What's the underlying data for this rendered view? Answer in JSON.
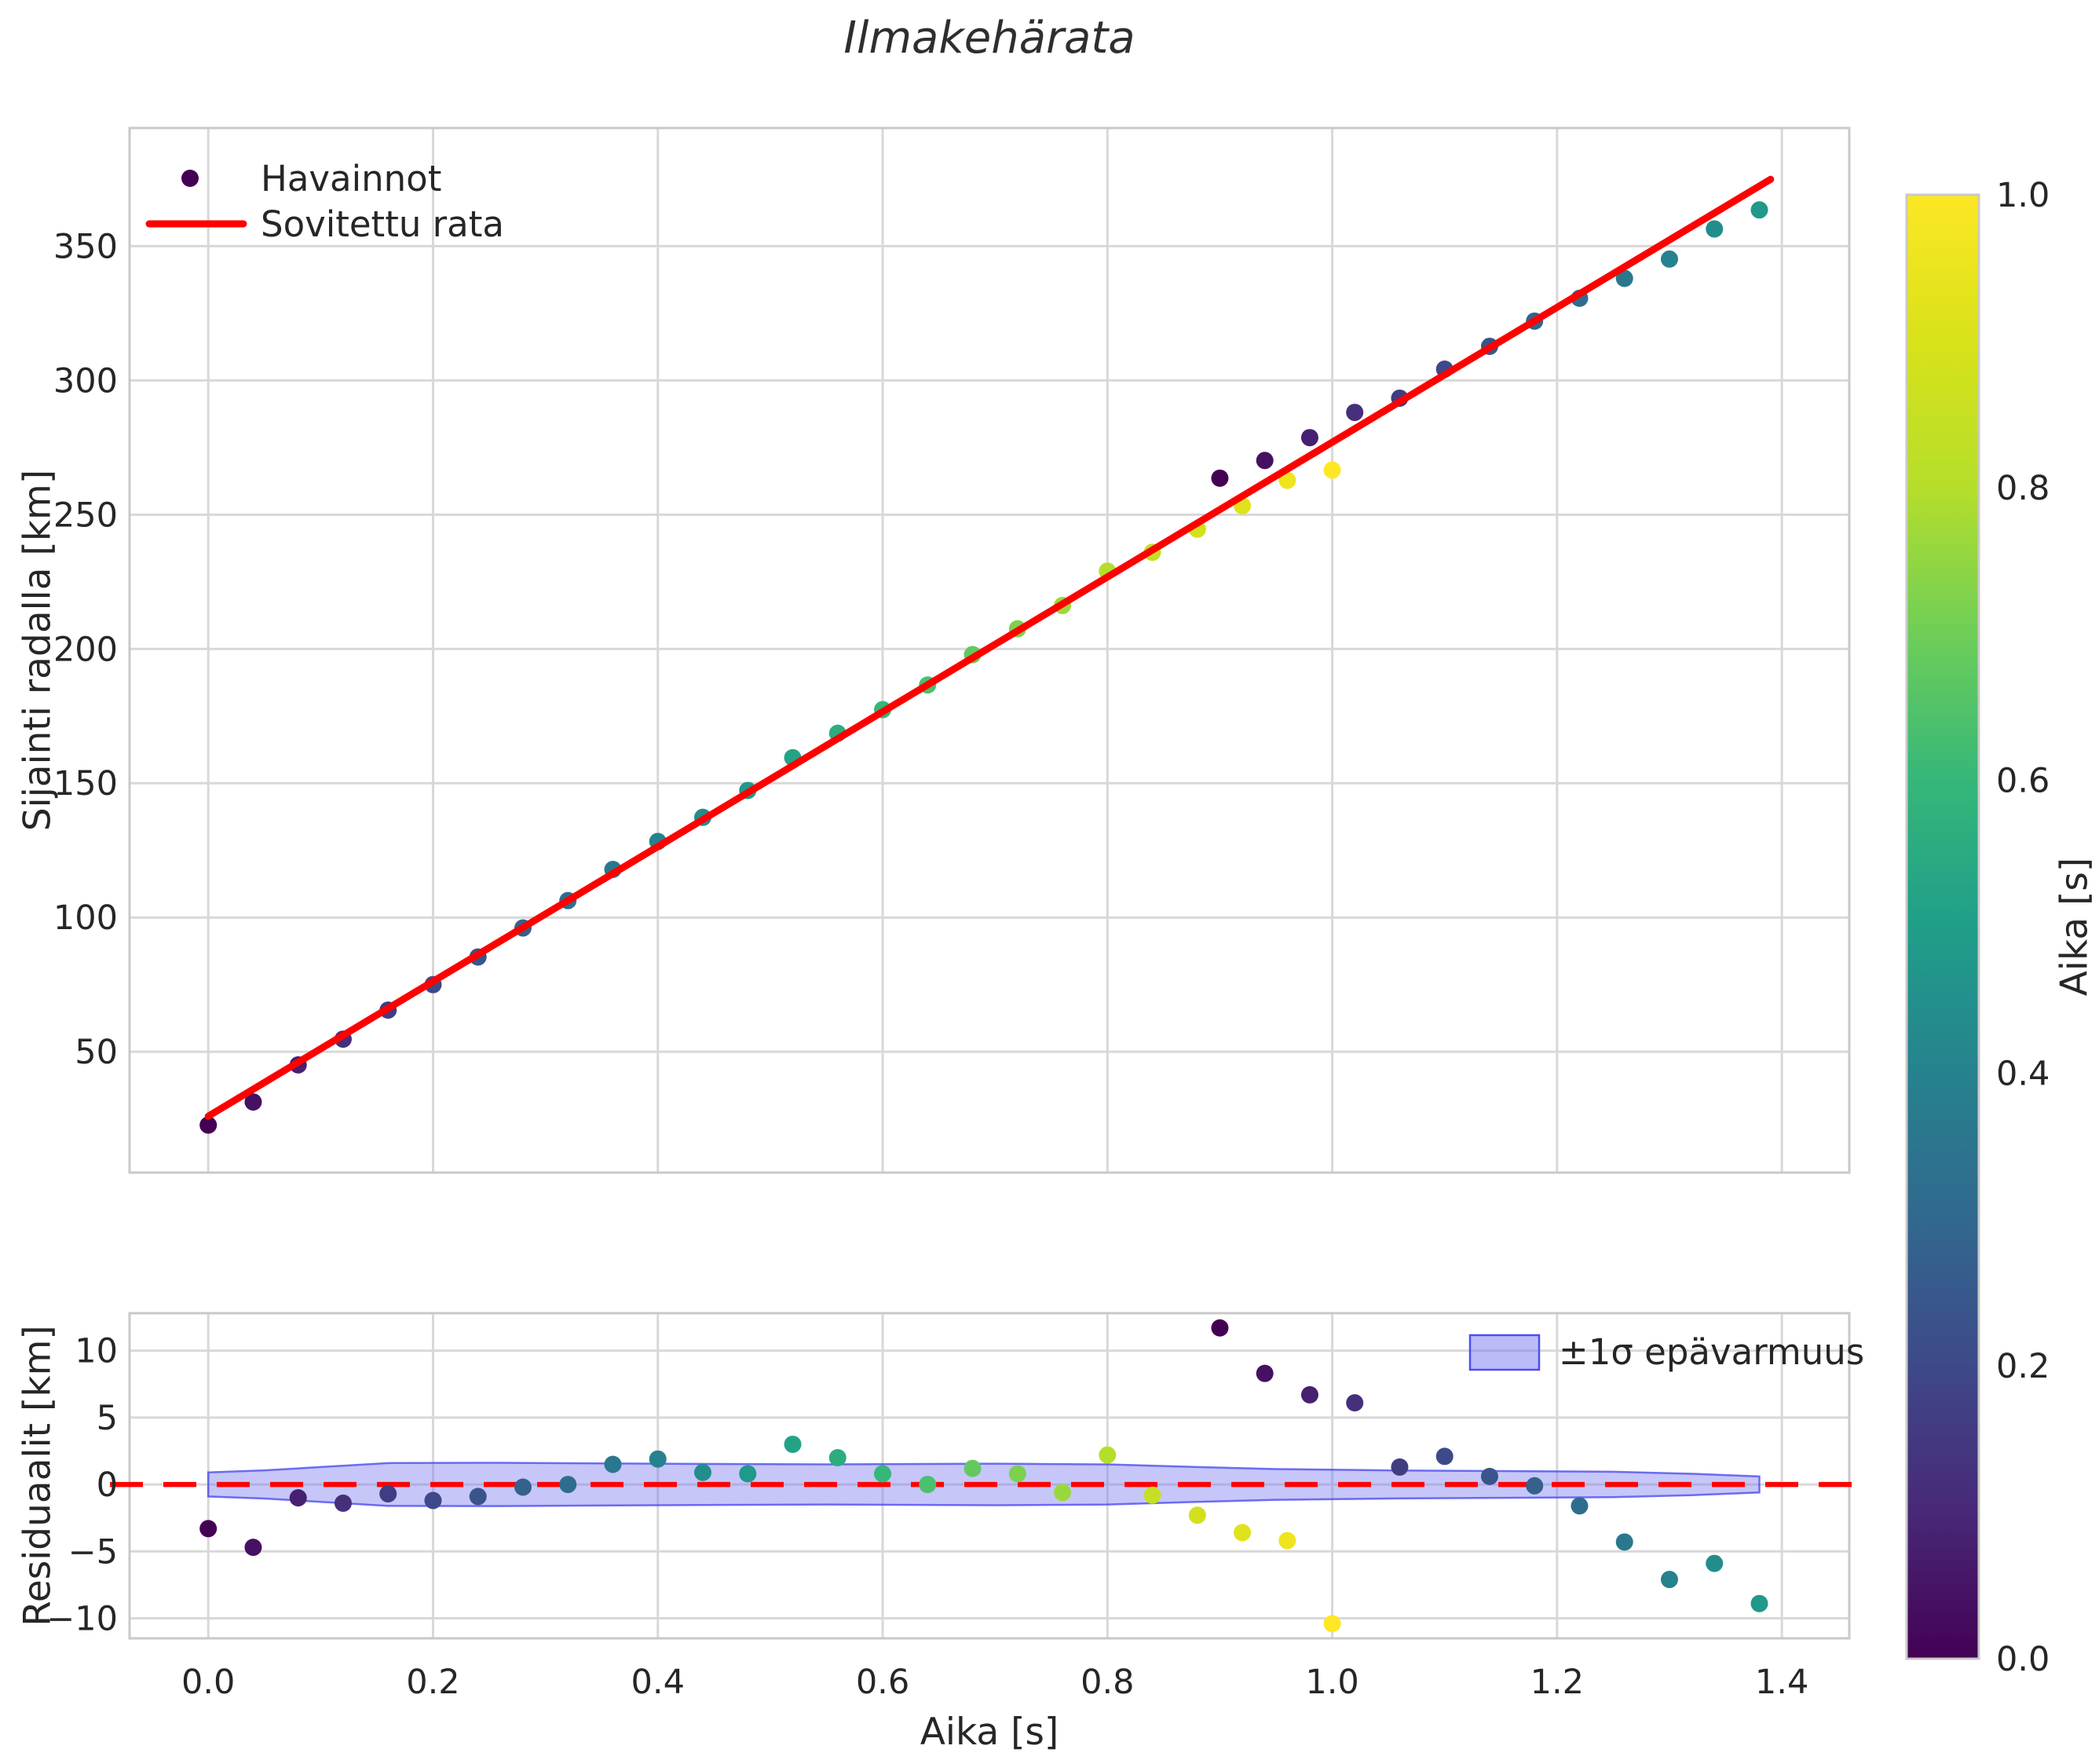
{
  "title": "Ilmakehärata",
  "colors": {
    "background": "#ffffff",
    "fit_line": "#ff0000",
    "zero_line": "#ff0000",
    "band_fill": "#7777f0",
    "band_edge": "#4d4df0",
    "grid": "#d8d8d8",
    "spine": "#c9c9c9",
    "text": "#262626",
    "viridis_stops": [
      [
        0,
        "#440154"
      ],
      [
        0.1,
        "#482878"
      ],
      [
        0.2,
        "#3e4989"
      ],
      [
        0.3,
        "#31688e"
      ],
      [
        0.4,
        "#26828e"
      ],
      [
        0.5,
        "#1f9e89"
      ],
      [
        0.6,
        "#35b779"
      ],
      [
        0.7,
        "#6ece58"
      ],
      [
        0.8,
        "#b5de2b"
      ],
      [
        0.9,
        "#d8e219"
      ],
      [
        1,
        "#fde725"
      ]
    ]
  },
  "chart_data": [
    {
      "id": "trajectory",
      "type": "scatter",
      "title": "Ilmakehärata",
      "ylabel": "Sijainti radalla [km]",
      "xlim": [
        -0.07,
        1.46
      ],
      "ylim": [
        5,
        394
      ],
      "yticks": [
        50,
        100,
        150,
        200,
        250,
        300,
        350
      ],
      "xticks": [
        0.0,
        0.2,
        0.4,
        0.6,
        0.8,
        1.0,
        1.2,
        1.4
      ],
      "x_tick_labels_visible": false,
      "grid": true,
      "legend": {
        "observations": "Havainnot",
        "fit": "Sovitettu rata",
        "position": "upper left"
      },
      "fit_line": {
        "t_start": 0.0,
        "t_end": 1.39,
        "y_start": 26.0,
        "y_end": 374.9
      },
      "points": [
        {
          "t": 0.0,
          "y": 22.7,
          "c": 0.0
        },
        {
          "t": 0.04,
          "y": 31.3,
          "c": 0.04
        },
        {
          "t": 0.08,
          "y": 45.1,
          "c": 0.08
        },
        {
          "t": 0.12,
          "y": 54.7,
          "c": 0.12
        },
        {
          "t": 0.16,
          "y": 65.5,
          "c": 0.16
        },
        {
          "t": 0.2,
          "y": 75.0,
          "c": 0.2
        },
        {
          "t": 0.24,
          "y": 85.3,
          "c": 0.24
        },
        {
          "t": 0.28,
          "y": 96.1,
          "c": 0.28
        },
        {
          "t": 0.32,
          "y": 106.3,
          "c": 0.32
        },
        {
          "t": 0.36,
          "y": 117.9,
          "c": 0.36
        },
        {
          "t": 0.4,
          "y": 128.3,
          "c": 0.4
        },
        {
          "t": 0.44,
          "y": 137.3,
          "c": 0.44
        },
        {
          "t": 0.48,
          "y": 147.3,
          "c": 0.48
        },
        {
          "t": 0.52,
          "y": 159.5,
          "c": 0.52
        },
        {
          "t": 0.56,
          "y": 168.6,
          "c": 0.56
        },
        {
          "t": 0.6,
          "y": 177.4,
          "c": 0.6
        },
        {
          "t": 0.64,
          "y": 186.6,
          "c": 0.64
        },
        {
          "t": 0.68,
          "y": 197.9,
          "c": 0.68
        },
        {
          "t": 0.72,
          "y": 207.5,
          "c": 0.72
        },
        {
          "t": 0.76,
          "y": 216.2,
          "c": 0.76
        },
        {
          "t": 0.8,
          "y": 229.0,
          "c": 0.8
        },
        {
          "t": 0.84,
          "y": 236.0,
          "c": 0.84
        },
        {
          "t": 0.88,
          "y": 244.6,
          "c": 0.88
        },
        {
          "t": 0.92,
          "y": 253.3,
          "c": 0.92
        },
        {
          "t": 0.96,
          "y": 262.8,
          "c": 0.96
        },
        {
          "t": 1.0,
          "y": 266.6,
          "c": 1.0
        },
        {
          "t": 0.9,
          "y": 263.6,
          "c": 0.0
        },
        {
          "t": 0.94,
          "y": 270.2,
          "c": 0.04
        },
        {
          "t": 0.98,
          "y": 278.7,
          "c": 0.08
        },
        {
          "t": 1.02,
          "y": 288.1,
          "c": 0.12
        },
        {
          "t": 1.06,
          "y": 293.4,
          "c": 0.16
        },
        {
          "t": 1.1,
          "y": 304.2,
          "c": 0.2
        },
        {
          "t": 1.14,
          "y": 312.7,
          "c": 0.24
        },
        {
          "t": 1.18,
          "y": 322.1,
          "c": 0.28
        },
        {
          "t": 1.22,
          "y": 330.6,
          "c": 0.32
        },
        {
          "t": 1.26,
          "y": 338.0,
          "c": 0.36
        },
        {
          "t": 1.3,
          "y": 345.2,
          "c": 0.4
        },
        {
          "t": 1.34,
          "y": 356.4,
          "c": 0.44
        },
        {
          "t": 1.38,
          "y": 363.5,
          "c": 0.48
        }
      ]
    },
    {
      "id": "residuals",
      "type": "scatter",
      "xlabel": "Aika [s]",
      "ylabel": "Residuaalit [km]",
      "xlim": [
        -0.07,
        1.46
      ],
      "ylim": [
        -11.5,
        12.8
      ],
      "yticks": [
        -10,
        -5,
        0,
        5,
        10
      ],
      "xtick_labels": [
        "0.0",
        "0.2",
        "0.4",
        "0.6",
        "0.8",
        "1.0",
        "1.2",
        "1.4"
      ],
      "xticks": [
        0.0,
        0.2,
        0.4,
        0.6,
        0.8,
        1.0,
        1.2,
        1.4
      ],
      "grid": true,
      "zero_line": 0,
      "legend": {
        "band": "±1σ epävarmuus",
        "position": "upper right"
      },
      "band": {
        "t": [
          0.0,
          0.05,
          0.1,
          0.16,
          0.25,
          0.4,
          0.55,
          0.7,
          0.8,
          0.88,
          0.95,
          1.05,
          1.15,
          1.25,
          1.32,
          1.38
        ],
        "sigma": [
          0.9,
          1.05,
          1.3,
          1.6,
          1.62,
          1.55,
          1.5,
          1.55,
          1.5,
          1.3,
          1.15,
          1.05,
          1.0,
          0.95,
          0.8,
          0.6
        ]
      },
      "points": [
        {
          "t": 0.0,
          "r": -3.3,
          "c": 0.0
        },
        {
          "t": 0.04,
          "r": -4.7,
          "c": 0.04
        },
        {
          "t": 0.08,
          "r": -1.0,
          "c": 0.08
        },
        {
          "t": 0.12,
          "r": -1.4,
          "c": 0.12
        },
        {
          "t": 0.16,
          "r": -0.7,
          "c": 0.16
        },
        {
          "t": 0.2,
          "r": -1.2,
          "c": 0.2
        },
        {
          "t": 0.24,
          "r": -0.9,
          "c": 0.24
        },
        {
          "t": 0.28,
          "r": -0.2,
          "c": 0.28
        },
        {
          "t": 0.32,
          "r": 0.0,
          "c": 0.32
        },
        {
          "t": 0.36,
          "r": 1.5,
          "c": 0.36
        },
        {
          "t": 0.4,
          "r": 1.9,
          "c": 0.4
        },
        {
          "t": 0.44,
          "r": 0.9,
          "c": 0.44
        },
        {
          "t": 0.48,
          "r": 0.8,
          "c": 0.48
        },
        {
          "t": 0.52,
          "r": 3.0,
          "c": 0.52
        },
        {
          "t": 0.56,
          "r": 2.0,
          "c": 0.56
        },
        {
          "t": 0.6,
          "r": 0.8,
          "c": 0.6
        },
        {
          "t": 0.64,
          "r": 0.0,
          "c": 0.64
        },
        {
          "t": 0.68,
          "r": 1.2,
          "c": 0.68
        },
        {
          "t": 0.72,
          "r": 0.8,
          "c": 0.72
        },
        {
          "t": 0.76,
          "r": -0.6,
          "c": 0.76
        },
        {
          "t": 0.8,
          "r": 2.2,
          "c": 0.8
        },
        {
          "t": 0.84,
          "r": -0.8,
          "c": 0.84
        },
        {
          "t": 0.88,
          "r": -2.3,
          "c": 0.88
        },
        {
          "t": 0.92,
          "r": -3.6,
          "c": 0.92
        },
        {
          "t": 0.96,
          "r": -4.2,
          "c": 0.96
        },
        {
          "t": 1.0,
          "r": -10.4,
          "c": 1.0
        },
        {
          "t": 0.9,
          "r": 11.7,
          "c": 0.0
        },
        {
          "t": 0.94,
          "r": 8.3,
          "c": 0.04
        },
        {
          "t": 0.98,
          "r": 6.7,
          "c": 0.08
        },
        {
          "t": 1.02,
          "r": 6.1,
          "c": 0.12
        },
        {
          "t": 1.06,
          "r": 1.3,
          "c": 0.16
        },
        {
          "t": 1.1,
          "r": 2.1,
          "c": 0.2
        },
        {
          "t": 1.14,
          "r": 0.6,
          "c": 0.24
        },
        {
          "t": 1.18,
          "r": -0.1,
          "c": 0.28
        },
        {
          "t": 1.22,
          "r": -1.6,
          "c": 0.32
        },
        {
          "t": 1.26,
          "r": -4.3,
          "c": 0.36
        },
        {
          "t": 1.3,
          "r": -7.1,
          "c": 0.4
        },
        {
          "t": 1.34,
          "r": -5.9,
          "c": 0.44
        },
        {
          "t": 1.38,
          "r": -8.9,
          "c": 0.48
        }
      ]
    }
  ],
  "colorbar": {
    "label": "Aika [s]",
    "tick_labels": [
      "0.0",
      "0.2",
      "0.4",
      "0.6",
      "0.8",
      "1.0"
    ],
    "ticks": [
      0.0,
      0.2,
      0.4,
      0.6,
      0.8,
      1.0
    ],
    "vmin": 0.0,
    "vmax": 1.0,
    "cmap": "viridis"
  }
}
